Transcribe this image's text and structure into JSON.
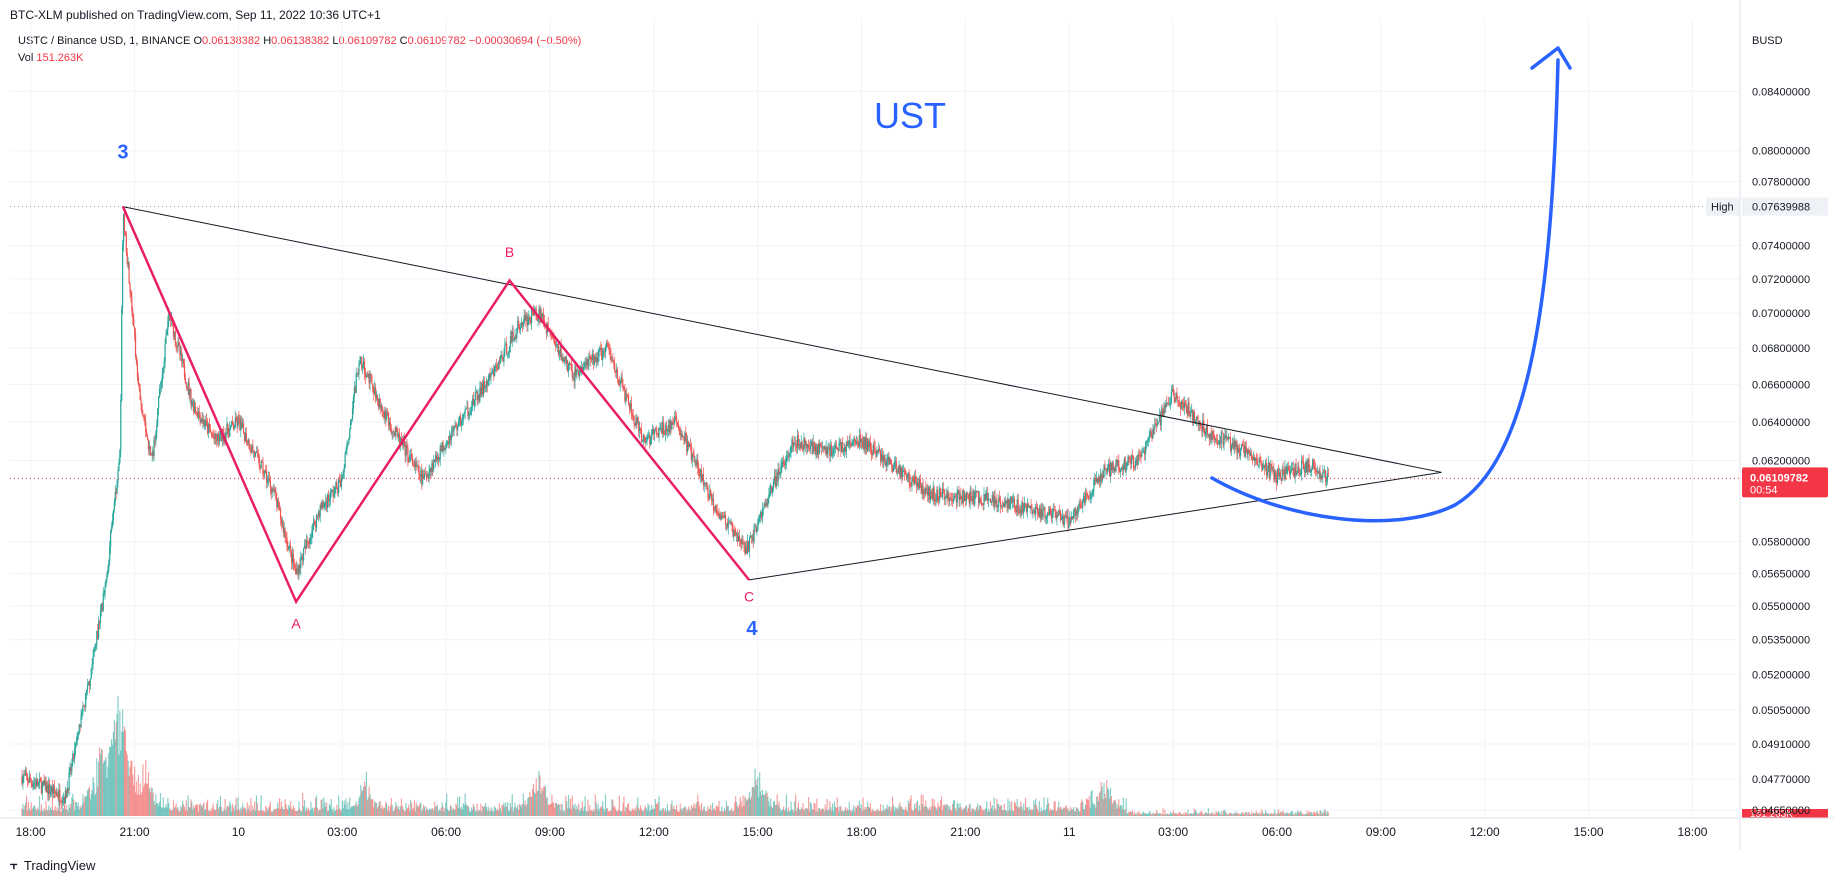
{
  "header": {
    "published": "BTC-XLM published on TradingView.com, Sep 11, 2022 10:36 UTC+1",
    "symbol": "USTC / Binance USD, 1, BINANCE",
    "o_label": "O",
    "o_value": "0.06138382",
    "h_label": "H",
    "h_value": "0.06138382",
    "l_label": "L",
    "l_value": "0.06109782",
    "c_label": "C",
    "c_value": "0.06109782",
    "change": "−0.00030694 (−0.50%)",
    "vol_label": "Vol",
    "vol_value": "151.263K",
    "currency": "BUSD"
  },
  "footer": {
    "brand": "TradingView"
  },
  "colors": {
    "up": "#26a69a",
    "down": "#ef5350",
    "wave_pink": "#e91e63",
    "wave_label_blue": "#2962ff",
    "arrow_blue": "#2962ff",
    "price_badge": "#f23645",
    "grid": "#f0f3fa"
  },
  "chart_data": {
    "type": "candlestick",
    "title": "UST",
    "y_axis": {
      "scale": "log",
      "range": [
        0.0462,
        0.0885
      ],
      "ticks": [
        "0.08400000",
        "0.08000000",
        "0.07800000",
        "0.07400000",
        "0.07200000",
        "0.07000000",
        "0.06800000",
        "0.06600000",
        "0.06400000",
        "0.06200000",
        "0.05800000",
        "0.05650000",
        "0.05500000",
        "0.05350000",
        "0.05200000",
        "0.05050000",
        "0.04910000",
        "0.04770000",
        "0.04650000"
      ]
    },
    "x_axis": {
      "range": [
        -15,
        2250
      ],
      "ticks": [
        {
          "t": 0,
          "label": "18:00"
        },
        {
          "t": 180,
          "label": "21:00"
        },
        {
          "t": 360,
          "label": "10"
        },
        {
          "t": 540,
          "label": "03:00"
        },
        {
          "t": 720,
          "label": "06:00"
        },
        {
          "t": 900,
          "label": "09:00"
        },
        {
          "t": 1080,
          "label": "12:00"
        },
        {
          "t": 1260,
          "label": "15:00"
        },
        {
          "t": 1440,
          "label": "18:00"
        },
        {
          "t": 1620,
          "label": "21:00"
        },
        {
          "t": 1800,
          "label": "11"
        },
        {
          "t": 1980,
          "label": "03:00"
        },
        {
          "t": 2160,
          "label": "06:00"
        },
        {
          "t": 2340,
          "label": "09:00"
        },
        {
          "t": 2520,
          "label": "12:00"
        },
        {
          "t": 2700,
          "label": "15:00"
        },
        {
          "t": 2880,
          "label": "18:00"
        }
      ]
    },
    "high_marker": {
      "label": "High",
      "value": "0.07639988"
    },
    "last_price": {
      "value": "0.06109782",
      "countdown": "00:54"
    },
    "volume_badge": "151.263K",
    "price_path": [
      {
        "t": -15,
        "p": 0.0478
      },
      {
        "t": 60,
        "p": 0.047
      },
      {
        "t": 100,
        "p": 0.0515
      },
      {
        "t": 130,
        "p": 0.056
      },
      {
        "t": 155,
        "p": 0.0625
      },
      {
        "t": 160,
        "p": 0.0762
      },
      {
        "t": 190,
        "p": 0.065
      },
      {
        "t": 210,
        "p": 0.062
      },
      {
        "t": 240,
        "p": 0.07
      },
      {
        "t": 280,
        "p": 0.065
      },
      {
        "t": 320,
        "p": 0.063
      },
      {
        "t": 360,
        "p": 0.064
      },
      {
        "t": 420,
        "p": 0.0605
      },
      {
        "t": 460,
        "p": 0.0565
      },
      {
        "t": 500,
        "p": 0.0595
      },
      {
        "t": 540,
        "p": 0.061
      },
      {
        "t": 570,
        "p": 0.0675
      },
      {
        "t": 620,
        "p": 0.064
      },
      {
        "t": 680,
        "p": 0.061
      },
      {
        "t": 720,
        "p": 0.063
      },
      {
        "t": 800,
        "p": 0.0665
      },
      {
        "t": 850,
        "p": 0.0695
      },
      {
        "t": 880,
        "p": 0.07
      },
      {
        "t": 940,
        "p": 0.0665
      },
      {
        "t": 1000,
        "p": 0.068
      },
      {
        "t": 1060,
        "p": 0.063
      },
      {
        "t": 1120,
        "p": 0.064
      },
      {
        "t": 1180,
        "p": 0.06
      },
      {
        "t": 1240,
        "p": 0.0575
      },
      {
        "t": 1275,
        "p": 0.06
      },
      {
        "t": 1320,
        "p": 0.063
      },
      {
        "t": 1380,
        "p": 0.0625
      },
      {
        "t": 1440,
        "p": 0.063
      },
      {
        "t": 1560,
        "p": 0.0603
      },
      {
        "t": 1680,
        "p": 0.06
      },
      {
        "t": 1800,
        "p": 0.059
      },
      {
        "t": 1860,
        "p": 0.0615
      },
      {
        "t": 1920,
        "p": 0.062
      },
      {
        "t": 1980,
        "p": 0.0655
      },
      {
        "t": 2040,
        "p": 0.0635
      },
      {
        "t": 2100,
        "p": 0.0625
      },
      {
        "t": 2160,
        "p": 0.0612
      },
      {
        "t": 2220,
        "p": 0.0618
      },
      {
        "t": 2250,
        "p": 0.0611
      }
    ],
    "volume_spikes": [
      {
        "t": 120,
        "v": 0.9
      },
      {
        "t": 150,
        "v": 1.3
      },
      {
        "t": 160,
        "v": 1.0
      },
      {
        "t": 200,
        "v": 0.6
      },
      {
        "t": 580,
        "v": 0.4
      },
      {
        "t": 880,
        "v": 0.6
      },
      {
        "t": 1260,
        "v": 0.55
      },
      {
        "t": 1860,
        "v": 0.45
      }
    ],
    "annotations": {
      "wave_labels": [
        {
          "text": "3",
          "t": 160,
          "p": 0.0795
        },
        {
          "text": "A",
          "t": 460,
          "p": 0.054
        },
        {
          "text": "B",
          "t": 830,
          "p": 0.0733
        },
        {
          "text": "C",
          "t": 1245,
          "p": 0.0552
        },
        {
          "text": "4",
          "t": 1250,
          "p": 0.0537
        }
      ],
      "abc_path": [
        {
          "t": 160,
          "p": 0.0764
        },
        {
          "t": 460,
          "p": 0.0552
        },
        {
          "t": 830,
          "p": 0.0719
        },
        {
          "t": 1245,
          "p": 0.0562
        }
      ],
      "triangle_upper": [
        {
          "t": 160,
          "p": 0.0764
        },
        {
          "t": 2445,
          "p": 0.0614
        }
      ],
      "triangle_lower": [
        {
          "t": 1245,
          "p": 0.0562
        },
        {
          "t": 2445,
          "p": 0.0614
        }
      ]
    }
  }
}
